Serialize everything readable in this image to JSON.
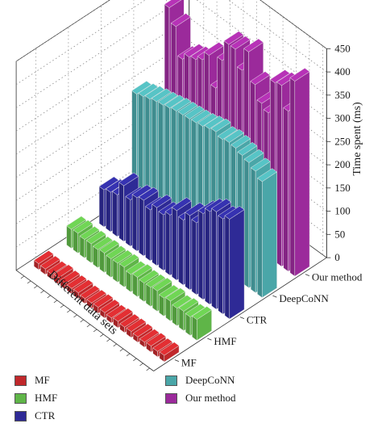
{
  "chart_data": {
    "type": "bar",
    "subtype": "3d-bar",
    "zlabel": "Time spent (ms)",
    "xlabel": "Different data sets",
    "zlim": [
      0,
      450
    ],
    "zticks": [
      "0",
      "50",
      "100",
      "150",
      "200",
      "250",
      "300",
      "350",
      "400",
      "450"
    ],
    "series_categories": [
      "Our method",
      "DeepCoNN",
      "CTR",
      "HMF",
      "MF"
    ],
    "grid": true,
    "legend_placement": "bottom",
    "series": [
      {
        "name": "MF",
        "color": "#c0282b",
        "values": [
          14,
          12,
          13,
          11,
          12,
          13,
          12,
          14,
          11,
          12,
          13,
          12,
          11,
          13,
          12,
          12,
          14,
          11,
          12,
          13
        ]
      },
      {
        "name": "HMF",
        "color": "#5fb548",
        "values": [
          45,
          40,
          42,
          38,
          43,
          39,
          44,
          41,
          40,
          42,
          38,
          43,
          41,
          40,
          42,
          39,
          41,
          40,
          43,
          41
        ]
      },
      {
        "name": "CTR",
        "color": "#2e2a96",
        "values": [
          215,
          205,
          210,
          200,
          185,
          155,
          160,
          140,
          150,
          130,
          120,
          125,
          110,
          120,
          115,
          100,
          120,
          90,
          85,
          80
        ]
      },
      {
        "name": "DeepCoNN",
        "color": "#4aa6a8",
        "values": [
          250,
          262,
          270,
          275,
          280,
          282,
          278,
          284,
          280,
          275,
          272,
          270,
          268,
          266,
          262,
          258,
          255,
          250,
          245,
          240
        ]
      },
      {
        "name": "Our method",
        "color": "#9b2a9b",
        "values": [
          420,
          345,
          390,
          385,
          310,
          320,
          350,
          410,
          360,
          395,
          395,
          350,
          280,
          340,
          320,
          310,
          305,
          290,
          350,
          380
        ]
      }
    ]
  },
  "legend": {
    "items": [
      {
        "label": "MF",
        "color": "#c0282b"
      },
      {
        "label": "HMF",
        "color": "#5fb548"
      },
      {
        "label": "CTR",
        "color": "#2e2a96"
      },
      {
        "label": "DeepCoNN",
        "color": "#4aa6a8"
      },
      {
        "label": "Our method",
        "color": "#9b2a9b"
      }
    ]
  }
}
